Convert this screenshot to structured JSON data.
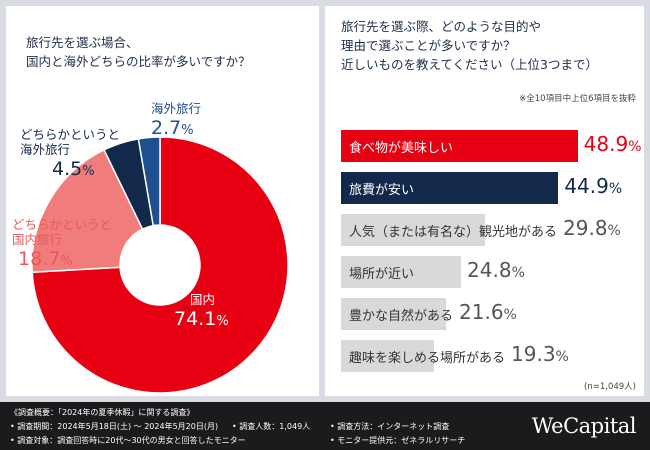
{
  "chart_data": [
    {
      "type": "pie",
      "title": "旅行先を選ぶ場合、\n国内と海外どちらの比率が多いですか？",
      "slices": [
        {
          "label": "国内",
          "value": 74.1,
          "display": "74.1%",
          "color": "#e60012",
          "text_color": "#ffffff"
        },
        {
          "label": "どちらかというと\n国内旅行",
          "value": 18.7,
          "display": "18.7%",
          "color": "#f07c7c",
          "text_color": "#e85a5a"
        },
        {
          "label": "どちらかというと\n海外旅行",
          "value": 4.5,
          "display": "4.5%",
          "color": "#13294b",
          "text_color": "#13294b"
        },
        {
          "label": "海外旅行",
          "value": 2.7,
          "display": "2.7%",
          "color": "#1e4f8f",
          "text_color": "#1e4f8f"
        }
      ]
    },
    {
      "type": "bar",
      "orientation": "horizontal",
      "title": "旅行先を選ぶ際、どのような目的や\n理由で選ぶことが多いですか？\n近しいものを教えてください（上位3つまで）",
      "note": "※全10項目中上位6項目を抜粋",
      "sample_size": "(n=1,049人)",
      "categories": [
        "食べ物が美味しい",
        "旅費が安い",
        "人気（または有名な）観光地がある",
        "場所が近い",
        "豊かな自然がある",
        "趣味を楽しめる場所がある"
      ],
      "values": [
        48.9,
        44.9,
        29.8,
        24.8,
        21.6,
        19.3
      ],
      "display": [
        "48.9%",
        "44.9%",
        "29.8%",
        "24.8%",
        "21.6%",
        "19.3%"
      ],
      "colors": [
        "#e60012",
        "#13294b",
        "#d9d9d9",
        "#d9d9d9",
        "#d9d9d9",
        "#d9d9d9"
      ],
      "label_colors": [
        "#ffffff",
        "#ffffff",
        "#333333",
        "#333333",
        "#333333",
        "#333333"
      ],
      "value_colors": [
        "#e60012",
        "#13294b",
        "#555555",
        "#555555",
        "#555555",
        "#555555"
      ],
      "xlim": [
        0,
        50
      ]
    }
  ],
  "footer": {
    "line1": "《調査概要：「2024年の夏季休暇」に関する調査》",
    "line2a": "• 調査期間：2024年5月18日(土) 〜 2024年5月20日(月)",
    "line2b": "• 調査人数：1,049人",
    "line2c": "• 調査方法：インターネット調査",
    "line3a": "• 調査対象：調査回答時に20代〜30代の男女と回答したモニター",
    "line3b": "• モニター提供元：ゼネラルリサーチ",
    "brand": "WeCapital"
  }
}
